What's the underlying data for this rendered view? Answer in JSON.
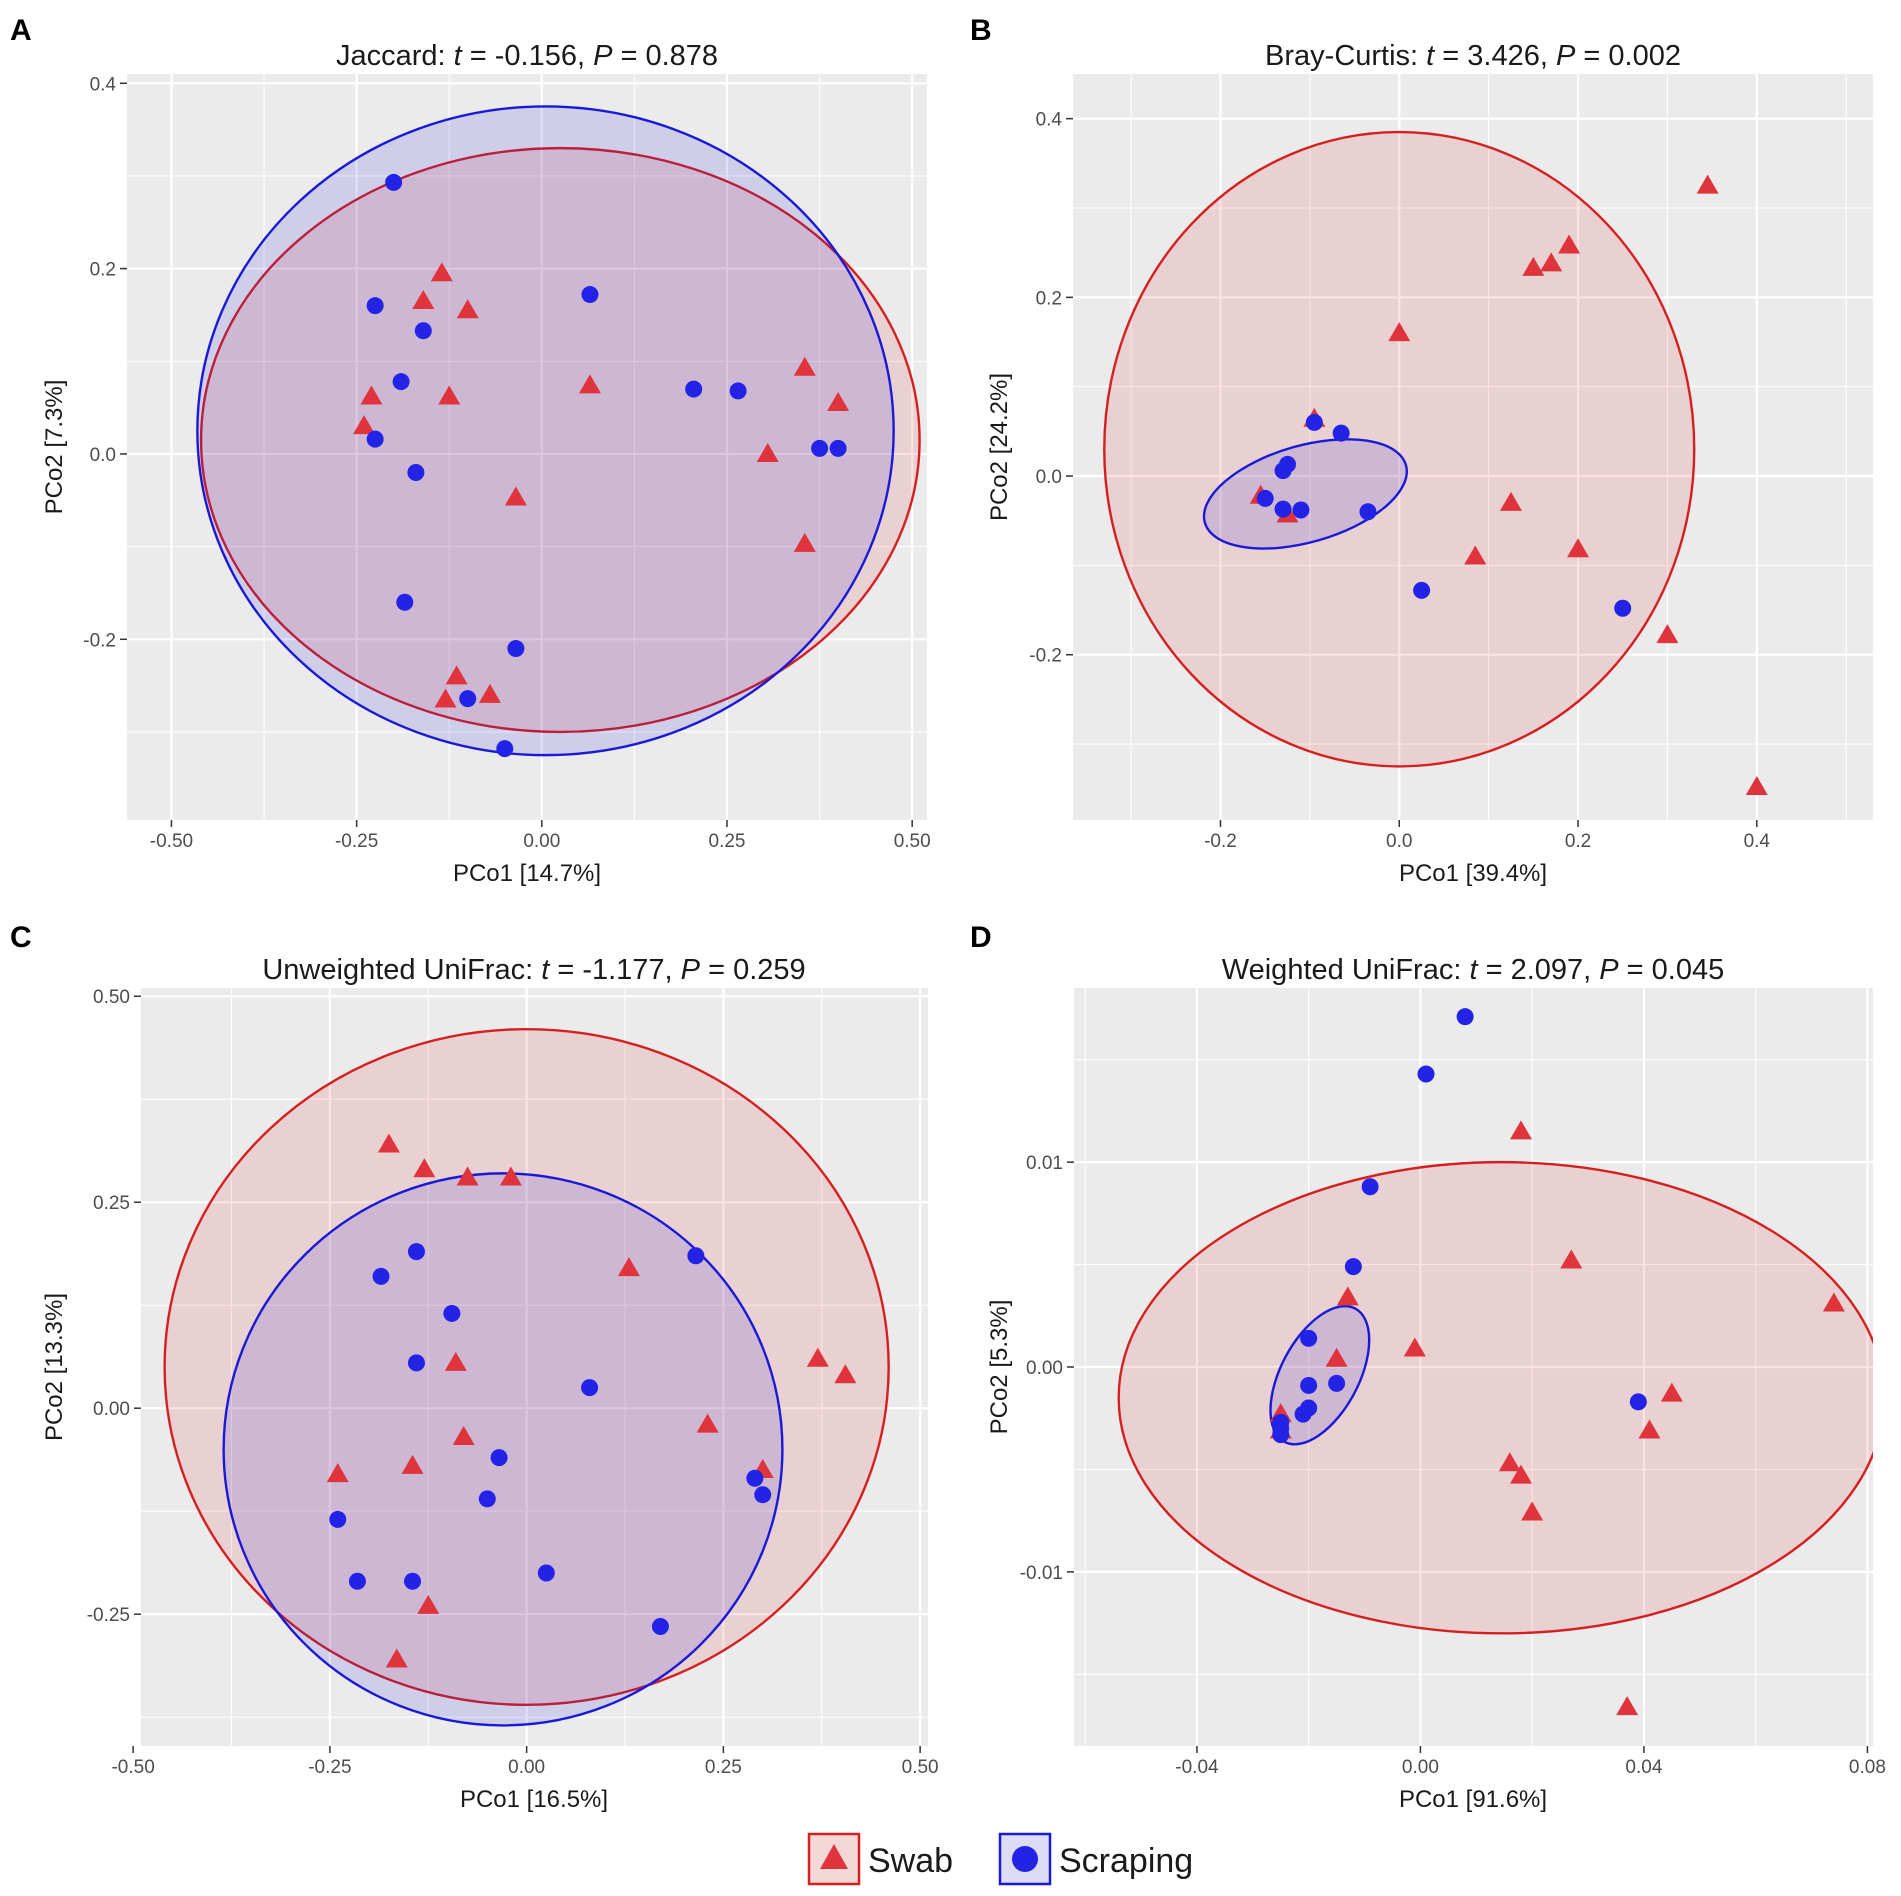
{
  "colors": {
    "swab": "#e0343c",
    "scraping": "#2323e6",
    "swab_line": "#d42020",
    "scraping_line": "#1a1ad6",
    "panel_bg": "#ebebeb",
    "grid": "#ffffff"
  },
  "legend": {
    "items": [
      {
        "label": "Swab",
        "marker": "triangle",
        "color": "#e0343c"
      },
      {
        "label": "Scraping",
        "marker": "circle",
        "color": "#2323e6"
      }
    ]
  },
  "chart_data": [
    {
      "panel": "A",
      "type": "scatter",
      "title_prefix": "Jaccard: ",
      "t_symbol": "t",
      "t_text": " = -0.156, ",
      "p_symbol": "P",
      "p_text": " = 0.878",
      "xlabel": "PCo1 [14.7%]",
      "ylabel": "PCo2 [7.3%]",
      "xlim": [
        -0.56,
        0.52
      ],
      "ylim": [
        -0.395,
        0.41
      ],
      "xticks": [
        -0.5,
        -0.25,
        0,
        0.25,
        0.5
      ],
      "xtick_labels": [
        "-0.50",
        "-0.25",
        "0.00",
        "0.25",
        "0.50"
      ],
      "yticks": [
        -0.2,
        0,
        0.2,
        0.4
      ],
      "ytick_labels": [
        "-0.2",
        "0.0",
        "0.2",
        "0.4"
      ],
      "ellipses": [
        {
          "group": "Swab",
          "cx": 0.025,
          "cy": 0.015,
          "rx": 0.485,
          "ry": 0.315,
          "angle": 0
        },
        {
          "group": "Scraping",
          "cx": 0.005,
          "cy": 0.025,
          "rx": 0.47,
          "ry": 0.35,
          "angle": 0
        }
      ],
      "series": [
        {
          "name": "Swab",
          "points": [
            [
              -0.135,
              0.195
            ],
            [
              -0.16,
              0.165
            ],
            [
              -0.1,
              0.155
            ],
            [
              -0.23,
              0.062
            ],
            [
              -0.125,
              0.062
            ],
            [
              -0.24,
              0.03
            ],
            [
              0.065,
              0.074
            ],
            [
              0.355,
              0.093
            ],
            [
              0.4,
              0.055
            ],
            [
              0.305,
              0
            ],
            [
              -0.035,
              -0.047
            ],
            [
              0.355,
              -0.097
            ],
            [
              -0.115,
              -0.24
            ],
            [
              -0.13,
              -0.265
            ],
            [
              -0.07,
              -0.26
            ]
          ]
        },
        {
          "name": "Scraping",
          "points": [
            [
              -0.2,
              0.293
            ],
            [
              -0.225,
              0.16
            ],
            [
              0.065,
              0.172
            ],
            [
              -0.16,
              0.133
            ],
            [
              -0.19,
              0.078
            ],
            [
              0.205,
              0.07
            ],
            [
              0.265,
              0.068
            ],
            [
              -0.225,
              0.016
            ],
            [
              0.375,
              0.006
            ],
            [
              0.4,
              0.006
            ],
            [
              -0.17,
              -0.02
            ],
            [
              -0.185,
              -0.16
            ],
            [
              -0.035,
              -0.21
            ],
            [
              -0.1,
              -0.264
            ],
            [
              -0.05,
              -0.318
            ]
          ]
        }
      ]
    },
    {
      "panel": "B",
      "type": "scatter",
      "title_prefix": "Bray-Curtis: ",
      "t_symbol": "t",
      "t_text": " = 3.426, ",
      "p_symbol": "P",
      "p_text": " = 0.002",
      "xlabel": "PCo1 [39.4%]",
      "ylabel": "PCo2 [24.2%]",
      "xlim": [
        -0.365,
        0.53
      ],
      "ylim": [
        -0.385,
        0.45
      ],
      "xticks": [
        -0.2,
        0,
        0.2,
        0.4
      ],
      "xtick_labels": [
        "-0.2",
        "0.0",
        "0.2",
        "0.4"
      ],
      "yticks": [
        -0.2,
        0,
        0.2,
        0.4
      ],
      "ytick_labels": [
        "-0.2",
        "0.0",
        "0.2",
        "0.4"
      ],
      "ellipses": [
        {
          "group": "Swab",
          "cx": 0.0,
          "cy": 0.03,
          "rx": 0.33,
          "ry": 0.355,
          "angle": 0
        },
        {
          "group": "Scraping",
          "cx": -0.105,
          "cy": -0.02,
          "rx": 0.117,
          "ry": 0.054,
          "angle": -16
        }
      ],
      "series": [
        {
          "name": "Swab",
          "points": [
            [
              0.345,
              0.325
            ],
            [
              0.19,
              0.258
            ],
            [
              0.17,
              0.238
            ],
            [
              0.15,
              0.233
            ],
            [
              0.0,
              0.16
            ],
            [
              -0.095,
              0.064
            ],
            [
              -0.155,
              -0.022
            ],
            [
              -0.125,
              -0.043
            ],
            [
              0.125,
              -0.03
            ],
            [
              0.2,
              -0.082
            ],
            [
              0.085,
              -0.09
            ],
            [
              0.3,
              -0.178
            ],
            [
              0.4,
              -0.348
            ]
          ]
        },
        {
          "name": "Scraping",
          "points": [
            [
              -0.095,
              0.06
            ],
            [
              -0.065,
              0.048
            ],
            [
              -0.125,
              0.013
            ],
            [
              -0.13,
              0.006
            ],
            [
              -0.15,
              -0.025
            ],
            [
              -0.13,
              -0.037
            ],
            [
              -0.11,
              -0.038
            ],
            [
              -0.035,
              -0.04
            ],
            [
              0.025,
              -0.128
            ],
            [
              0.25,
              -0.148
            ]
          ]
        }
      ]
    },
    {
      "panel": "C",
      "type": "scatter",
      "title_prefix": "Unweighted UniFrac: ",
      "t_symbol": "t",
      "t_text": " = -1.177, ",
      "p_symbol": "P",
      "p_text": " = 0.259",
      "xlabel": "PCo1 [16.5%]",
      "ylabel": "PCo2 [13.3%]",
      "xlim": [
        -0.49,
        0.51
      ],
      "ylim": [
        -0.41,
        0.51
      ],
      "xticks": [
        -0.5,
        -0.25,
        0,
        0.25,
        0.5
      ],
      "xtick_labels": [
        "-0.50",
        "-0.25",
        "0.00",
        "0.25",
        "0.50"
      ],
      "yticks": [
        -0.25,
        0,
        0.25,
        0.5
      ],
      "ytick_labels": [
        "-0.25",
        "0.00",
        "0.25",
        "0.50"
      ],
      "ellipses": [
        {
          "group": "Swab",
          "cx": 0.0,
          "cy": 0.05,
          "rx": 0.46,
          "ry": 0.41,
          "angle": 0
        },
        {
          "group": "Scraping",
          "cx": -0.03,
          "cy": -0.05,
          "rx": 0.355,
          "ry": 0.335,
          "angle": 0
        }
      ],
      "series": [
        {
          "name": "Swab",
          "points": [
            [
              -0.175,
              0.32
            ],
            [
              -0.13,
              0.29
            ],
            [
              -0.075,
              0.28
            ],
            [
              -0.02,
              0.28
            ],
            [
              0.13,
              0.17
            ],
            [
              0.37,
              0.06
            ],
            [
              0.405,
              0.04
            ],
            [
              -0.09,
              0.055
            ],
            [
              -0.08,
              -0.035
            ],
            [
              0.23,
              -0.02
            ],
            [
              -0.24,
              -0.08
            ],
            [
              -0.145,
              -0.07
            ],
            [
              0.3,
              -0.075
            ],
            [
              -0.125,
              -0.24
            ],
            [
              -0.165,
              -0.305
            ]
          ]
        },
        {
          "name": "Scraping",
          "points": [
            [
              0.215,
              0.185
            ],
            [
              -0.14,
              0.19
            ],
            [
              -0.185,
              0.16
            ],
            [
              -0.095,
              0.115
            ],
            [
              -0.14,
              0.055
            ],
            [
              0.08,
              0.025
            ],
            [
              -0.035,
              -0.06
            ],
            [
              -0.05,
              -0.11
            ],
            [
              0.29,
              -0.085
            ],
            [
              0.3,
              -0.105
            ],
            [
              -0.24,
              -0.135
            ],
            [
              -0.215,
              -0.21
            ],
            [
              -0.145,
              -0.21
            ],
            [
              0.025,
              -0.2
            ],
            [
              0.17,
              -0.265
            ]
          ]
        }
      ]
    },
    {
      "panel": "D",
      "type": "scatter",
      "title_prefix": "Weighted UniFrac: ",
      "t_symbol": "t",
      "t_text": " = 2.097, ",
      "p_symbol": "P",
      "p_text": " = 0.045",
      "xlabel": "PCo1 [91.6%]",
      "ylabel": "PCo2 [5.3%]",
      "xlim": [
        -0.062,
        0.081
      ],
      "ylim": [
        -0.0185,
        0.0185
      ],
      "xticks": [
        -0.04,
        0,
        0.04,
        0.08
      ],
      "xtick_labels": [
        "-0.04",
        "0.00",
        "0.04",
        "0.08"
      ],
      "yticks": [
        -0.01,
        0,
        0.01
      ],
      "ytick_labels": [
        "-0.01",
        "0.00",
        "0.01"
      ],
      "ellipses": [
        {
          "group": "Swab",
          "cx": 0.0145,
          "cy": -0.0015,
          "rx": 0.0685,
          "ry": 0.0115,
          "angle": 0
        },
        {
          "group": "Scraping",
          "cx": -0.018,
          "cy": -0.0004,
          "rx": 0.0135,
          "ry": 0.0019,
          "angle": -62
        }
      ],
      "series": [
        {
          "name": "Swab",
          "points": [
            [
              0.018,
              0.0115
            ],
            [
              0.074,
              0.0031
            ],
            [
              0.027,
              0.0052
            ],
            [
              -0.013,
              0.0034
            ],
            [
              -0.001,
              0.0009
            ],
            [
              -0.015,
              0.0004
            ],
            [
              0.045,
              -0.0013
            ],
            [
              0.041,
              -0.0031
            ],
            [
              0.016,
              -0.0047
            ],
            [
              0.018,
              -0.0053
            ],
            [
              0.02,
              -0.0071
            ],
            [
              -0.025,
              -0.0023
            ],
            [
              -0.025,
              -0.0031
            ],
            [
              0.037,
              -0.0166
            ]
          ]
        },
        {
          "name": "Scraping",
          "points": [
            [
              0.008,
              0.0171
            ],
            [
              0.001,
              0.0143
            ],
            [
              -0.009,
              0.0088
            ],
            [
              -0.012,
              0.0049
            ],
            [
              -0.02,
              0.0014
            ],
            [
              -0.015,
              -0.0008
            ],
            [
              -0.02,
              -0.0009
            ],
            [
              -0.02,
              -0.002
            ],
            [
              -0.021,
              -0.0023
            ],
            [
              -0.025,
              -0.0027
            ],
            [
              -0.025,
              -0.003
            ],
            [
              -0.025,
              -0.0033
            ],
            [
              0.039,
              -0.0017
            ]
          ]
        }
      ]
    }
  ]
}
